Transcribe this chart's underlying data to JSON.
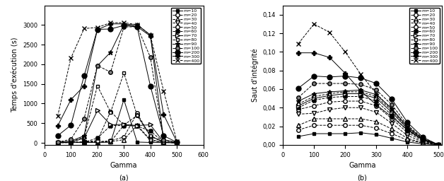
{
  "gamma": [
    50,
    100,
    150,
    200,
    250,
    300,
    350,
    400,
    450,
    500
  ],
  "series_left": {
    "m=10": [
      5,
      8,
      10,
      12,
      15,
      1100,
      20,
      10,
      5,
      2
    ],
    "m=20": [
      8,
      15,
      20,
      30,
      50,
      150,
      750,
      170,
      30,
      5
    ],
    "m=30": [
      5,
      8,
      12,
      20,
      30,
      80,
      450,
      80,
      15,
      3
    ],
    "m=40": [
      5,
      8,
      10,
      18,
      30,
      450,
      430,
      60,
      10,
      2
    ],
    "m=50": [
      8,
      15,
      20,
      60,
      800,
      450,
      700,
      170,
      15,
      3
    ],
    "m=60": [
      5,
      10,
      18,
      120,
      440,
      440,
      430,
      300,
      15,
      3
    ],
    "m=70": [
      8,
      15,
      120,
      820,
      460,
      470,
      440,
      460,
      15,
      3
    ],
    "m=80": [
      8,
      25,
      150,
      1450,
      780,
      1780,
      700,
      180,
      15,
      3
    ],
    "m=90": [
      12,
      45,
      180,
      1960,
      2310,
      3010,
      3010,
      2750,
      80,
      8
    ],
    "m=100": [
      18,
      90,
      620,
      1970,
      1800,
      2950,
      2960,
      2180,
      80,
      8
    ],
    "m=200": [
      180,
      450,
      1710,
      2890,
      2900,
      2990,
      2950,
      1450,
      180,
      15
    ],
    "m=300": [
      430,
      1100,
      1450,
      2880,
      3030,
      3030,
      2960,
      2720,
      720,
      25
    ],
    "m=400": [
      680,
      2160,
      2910,
      2940,
      3060,
      3060,
      3010,
      2740,
      1320,
      40
    ]
  },
  "series_right": {
    "m=10": [
      0.009,
      0.012,
      0.012,
      0.012,
      0.013,
      0.011,
      0.007,
      0.003,
      0.001,
      0.0
    ],
    "m=20": [
      0.016,
      0.021,
      0.021,
      0.021,
      0.021,
      0.018,
      0.012,
      0.005,
      0.002,
      0.0
    ],
    "m=30": [
      0.021,
      0.028,
      0.028,
      0.028,
      0.028,
      0.025,
      0.017,
      0.007,
      0.002,
      0.0
    ],
    "m=40": [
      0.033,
      0.034,
      0.038,
      0.04,
      0.04,
      0.035,
      0.023,
      0.01,
      0.003,
      0.0
    ],
    "m=50": [
      0.038,
      0.042,
      0.046,
      0.047,
      0.047,
      0.042,
      0.028,
      0.013,
      0.004,
      0.0
    ],
    "m=60": [
      0.04,
      0.048,
      0.051,
      0.052,
      0.052,
      0.047,
      0.032,
      0.015,
      0.005,
      0.0
    ],
    "m=70": [
      0.042,
      0.05,
      0.053,
      0.055,
      0.055,
      0.05,
      0.035,
      0.017,
      0.005,
      0.0
    ],
    "m=80": [
      0.044,
      0.052,
      0.055,
      0.057,
      0.057,
      0.052,
      0.037,
      0.018,
      0.006,
      0.0
    ],
    "m=90": [
      0.047,
      0.055,
      0.057,
      0.058,
      0.059,
      0.054,
      0.039,
      0.019,
      0.006,
      0.0
    ],
    "m=100": [
      0.051,
      0.066,
      0.066,
      0.066,
      0.065,
      0.059,
      0.043,
      0.021,
      0.007,
      0.0
    ],
    "m=200": [
      0.061,
      0.074,
      0.073,
      0.074,
      0.072,
      0.066,
      0.049,
      0.024,
      0.008,
      0.0
    ],
    "m=300": [
      0.099,
      0.099,
      0.094,
      0.077,
      0.058,
      0.043,
      0.03,
      0.016,
      0.005,
      0.0
    ],
    "m=400": [
      0.109,
      0.13,
      0.121,
      0.1,
      0.076,
      0.055,
      0.038,
      0.02,
      0.006,
      0.0
    ]
  },
  "ylabel_left": "Temps d'exécution (s)",
  "ylabel_right": "Saut d'intégrité",
  "xlabel": "Gamma",
  "label_a": "(a)",
  "label_b": "(b)",
  "xlim_left": [
    0,
    600
  ],
  "ylim_left": [
    -50,
    3500
  ],
  "xlim_right": [
    0,
    510
  ],
  "ylim_right": [
    0,
    0.15
  ],
  "xticks_left": [
    0,
    100,
    200,
    300,
    400,
    500,
    600
  ],
  "xticks_right": [
    0,
    100,
    200,
    300,
    400,
    500
  ],
  "yticks_left": [
    0,
    500,
    1000,
    1500,
    2000,
    2500,
    3000
  ],
  "yticks_right": [
    0.0,
    0.02,
    0.04,
    0.06,
    0.08,
    0.1,
    0.12,
    0.14
  ]
}
